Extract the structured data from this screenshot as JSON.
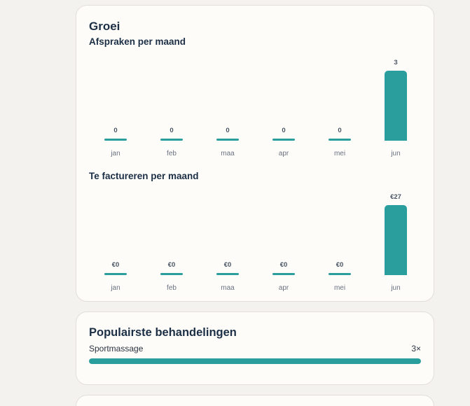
{
  "growth": {
    "title": "Groei"
  },
  "chart_data": [
    {
      "type": "bar",
      "title": "Afspraken per maand",
      "categories": [
        "jan",
        "feb",
        "maa",
        "apr",
        "mei",
        "jun"
      ],
      "values": [
        0,
        0,
        0,
        0,
        0,
        3
      ],
      "value_labels": [
        "0",
        "0",
        "0",
        "0",
        "0",
        "3"
      ],
      "color": "#2a9d9d",
      "ylim": [
        0,
        3
      ]
    },
    {
      "type": "bar",
      "title": "Te factureren per maand",
      "categories": [
        "jan",
        "feb",
        "maa",
        "apr",
        "mei",
        "jun"
      ],
      "values": [
        0,
        0,
        0,
        0,
        0,
        27
      ],
      "value_labels": [
        "€0",
        "€0",
        "€0",
        "€0",
        "€0",
        "€27"
      ],
      "color": "#2a9d9d",
      "ylim": [
        0,
        27
      ]
    }
  ],
  "popular": {
    "title": "Populairste behandelingen",
    "items": [
      {
        "name": "Sportmassage",
        "count": "3×",
        "share": 1.0
      }
    ]
  },
  "colors": {
    "accent": "#2a9d9d",
    "background": "#f4f2ee",
    "card": "#fdfcf9"
  }
}
